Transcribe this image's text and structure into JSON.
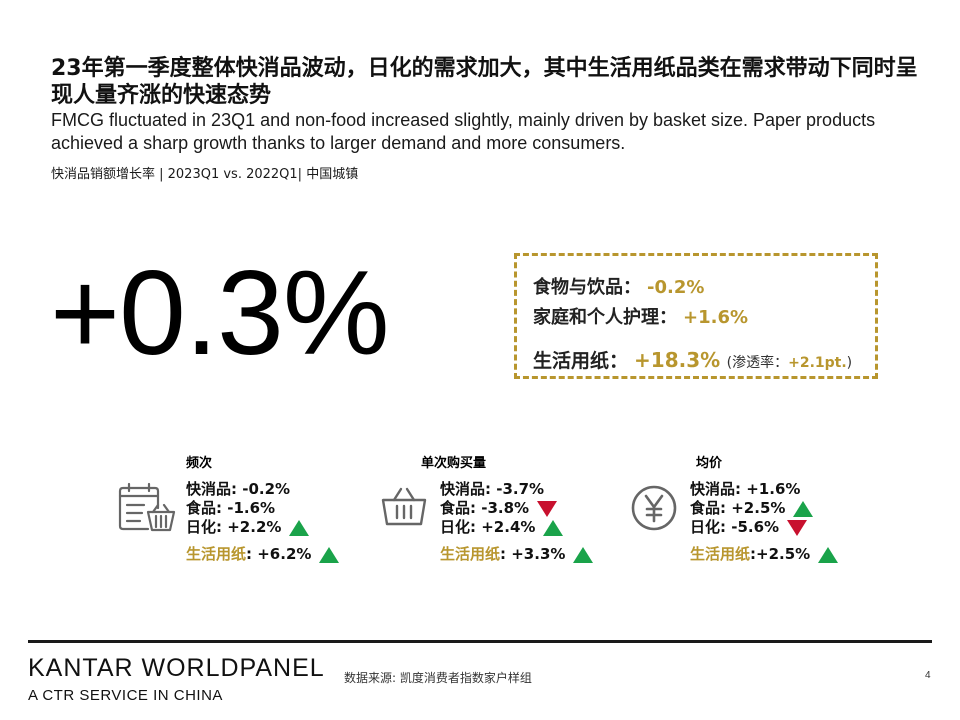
{
  "title": "23年第一季度整体快消品波动，日化的需求加大，其中生活用纸品类在需求带动下同时呈现人量齐涨的快速态势",
  "subtitle": "FMCG fluctuated in 23Q1 and non-food increased slightly, mainly driven by basket size. Paper products achieved a sharp growth thanks to larger demand and more consumers.",
  "caption": "快消品销额增长率 | 2023Q1 vs. 2022Q1| 中国城镇",
  "headline_value": "+0.3%",
  "highlight_box": {
    "food_label": "食物与饮品：",
    "food_value": "-0.2%",
    "hpc_label": "家庭和个人护理：",
    "hpc_value": "+1.6%",
    "paper_label": "生活用纸：",
    "paper_value": "+18.3%",
    "paper_note_pre": " (渗透率：",
    "paper_note_value": "+2.1pt.",
    "paper_note_post": ")"
  },
  "metrics": [
    {
      "header": "频次",
      "icon": "calendar-basket-icon",
      "lines": [
        {
          "label": "快消品",
          "value": ": -0.2%",
          "trend": "none"
        },
        {
          "label": "食品",
          "value": ": -1.6%",
          "trend": "none"
        },
        {
          "label": "日化",
          "value": ": +2.2%",
          "trend": "up"
        },
        {
          "label": "生活用纸",
          "value": ": +6.2%",
          "trend": "up"
        }
      ]
    },
    {
      "header": "单次购买量",
      "icon": "basket-icon",
      "lines": [
        {
          "label": "快消品",
          "value": ": -3.7%",
          "trend": "none"
        },
        {
          "label": "食品",
          "value": ": -3.8%",
          "trend": "down"
        },
        {
          "label": "日化",
          "value": ": +2.4%",
          "trend": "up"
        },
        {
          "label": "生活用纸",
          "value": ": +3.3%",
          "trend": "up"
        }
      ]
    },
    {
      "header": "均价",
      "icon": "yuan-coin-icon",
      "lines": [
        {
          "label": "快消品",
          "value": ": +1.6%",
          "trend": "none"
        },
        {
          "label": "食品",
          "value": ": +2.5%",
          "trend": "up"
        },
        {
          "label": "日化",
          "value": ": -5.6%",
          "trend": "down"
        },
        {
          "label": "生活用纸",
          "value": ":+2.5%",
          "trend": "up"
        }
      ]
    }
  ],
  "colors": {
    "gold": "#b8962e",
    "up": "#1aa34a",
    "down": "#c8102e"
  },
  "footer": {
    "brand": "KANTAR WORLDPANEL",
    "brand_sub": "A CTR SERVICE IN CHINA",
    "source": "数据来源: 凯度消费者指数家户样组",
    "page": "4"
  }
}
